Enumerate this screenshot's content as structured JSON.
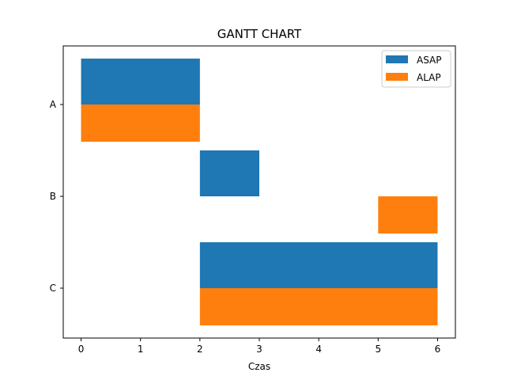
{
  "chart_data": {
    "type": "bar",
    "orientation": "horizontal",
    "title": "GANTT CHART",
    "xlabel": "Czas",
    "ylabel": "",
    "xlim": [
      -0.3,
      6.3
    ],
    "x_ticks": [
      0,
      1,
      2,
      3,
      4,
      5,
      6
    ],
    "categories": [
      "A",
      "B",
      "C"
    ],
    "grid": false,
    "legend_position": "top-right",
    "series": [
      {
        "name": "ASAP",
        "color": "#1f77b4",
        "tasks": [
          {
            "task": "A",
            "start": 0,
            "end": 2
          },
          {
            "task": "B",
            "start": 2,
            "end": 3
          },
          {
            "task": "C",
            "start": 2,
            "end": 6
          }
        ]
      },
      {
        "name": "ALAP",
        "color": "#ff7f0e",
        "tasks": [
          {
            "task": "A",
            "start": 0,
            "end": 2
          },
          {
            "task": "B",
            "start": 5,
            "end": 6
          },
          {
            "task": "C",
            "start": 2,
            "end": 6
          }
        ]
      }
    ]
  }
}
